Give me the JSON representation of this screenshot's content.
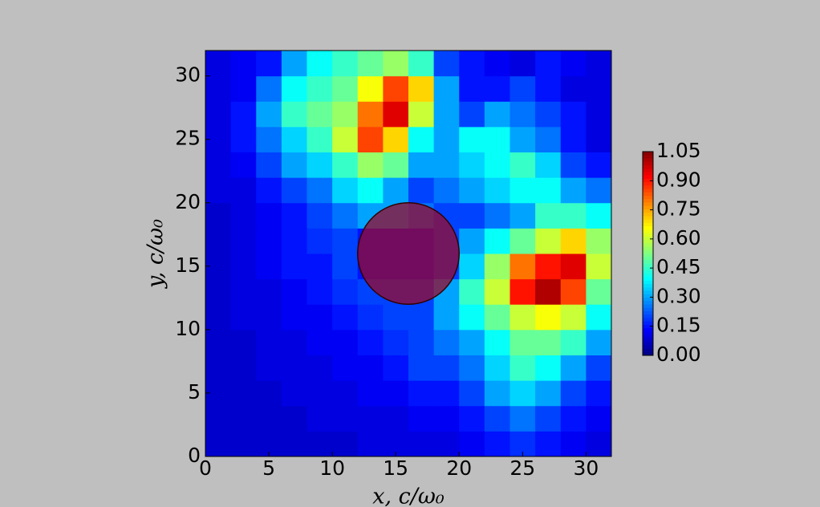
{
  "chart_data": {
    "type": "heatmap",
    "xlabel": "x,  c/ω₀",
    "ylabel": "y,  c/ω₀",
    "xbins": [
      0,
      2,
      4,
      6,
      8,
      10,
      12,
      14,
      16,
      18,
      20,
      22,
      24,
      26,
      28,
      30,
      32
    ],
    "ybins": [
      0,
      2,
      4,
      6,
      8,
      10,
      12,
      14,
      16,
      18,
      20,
      22,
      24,
      26,
      28,
      30,
      32
    ],
    "z": [
      [
        0.08,
        0.08,
        0.08,
        0.08,
        0.08,
        0.08,
        0.1,
        0.1,
        0.1,
        0.1,
        0.12,
        0.15,
        0.18,
        0.15,
        0.12,
        0.1
      ],
      [
        0.08,
        0.08,
        0.08,
        0.08,
        0.1,
        0.1,
        0.1,
        0.1,
        0.12,
        0.12,
        0.15,
        0.2,
        0.25,
        0.2,
        0.15,
        0.12
      ],
      [
        0.08,
        0.08,
        0.08,
        0.1,
        0.1,
        0.1,
        0.12,
        0.12,
        0.15,
        0.15,
        0.2,
        0.3,
        0.35,
        0.3,
        0.2,
        0.15
      ],
      [
        0.08,
        0.08,
        0.1,
        0.1,
        0.1,
        0.12,
        0.12,
        0.15,
        0.2,
        0.2,
        0.25,
        0.35,
        0.45,
        0.4,
        0.3,
        0.2
      ],
      [
        0.08,
        0.08,
        0.1,
        0.1,
        0.12,
        0.12,
        0.15,
        0.18,
        0.2,
        0.25,
        0.3,
        0.4,
        0.5,
        0.5,
        0.45,
        0.3
      ],
      [
        0.08,
        0.1,
        0.1,
        0.12,
        0.12,
        0.15,
        0.18,
        0.2,
        0.2,
        0.3,
        0.4,
        0.5,
        0.6,
        0.65,
        0.6,
        0.4
      ],
      [
        0.08,
        0.1,
        0.1,
        0.12,
        0.15,
        0.18,
        0.2,
        0.2,
        0.2,
        0.3,
        0.45,
        0.6,
        0.9,
        1.0,
        0.85,
        0.5
      ],
      [
        0.08,
        0.1,
        0.12,
        0.15,
        0.15,
        0.2,
        0.15,
        0.15,
        0.15,
        0.2,
        0.35,
        0.55,
        0.8,
        0.9,
        0.95,
        0.6
      ],
      [
        0.08,
        0.1,
        0.12,
        0.15,
        0.18,
        0.2,
        0.15,
        0.15,
        0.15,
        0.2,
        0.3,
        0.4,
        0.5,
        0.6,
        0.7,
        0.55
      ],
      [
        0.08,
        0.1,
        0.12,
        0.15,
        0.2,
        0.25,
        0.3,
        0.3,
        0.25,
        0.2,
        0.2,
        0.25,
        0.3,
        0.45,
        0.45,
        0.4
      ],
      [
        0.1,
        0.1,
        0.15,
        0.2,
        0.25,
        0.35,
        0.4,
        0.3,
        0.2,
        0.25,
        0.3,
        0.35,
        0.4,
        0.4,
        0.3,
        0.25
      ],
      [
        0.1,
        0.12,
        0.2,
        0.3,
        0.35,
        0.45,
        0.55,
        0.5,
        0.3,
        0.3,
        0.35,
        0.4,
        0.45,
        0.35,
        0.2,
        0.15
      ],
      [
        0.1,
        0.15,
        0.25,
        0.35,
        0.45,
        0.6,
        0.85,
        0.7,
        0.4,
        0.3,
        0.4,
        0.4,
        0.3,
        0.25,
        0.15,
        0.1
      ],
      [
        0.1,
        0.15,
        0.3,
        0.45,
        0.5,
        0.55,
        0.8,
        0.95,
        0.6,
        0.3,
        0.2,
        0.3,
        0.25,
        0.2,
        0.15,
        0.1
      ],
      [
        0.1,
        0.12,
        0.25,
        0.4,
        0.45,
        0.5,
        0.65,
        0.85,
        0.7,
        0.3,
        0.15,
        0.15,
        0.2,
        0.15,
        0.1,
        0.1
      ],
      [
        0.1,
        0.12,
        0.15,
        0.3,
        0.4,
        0.45,
        0.5,
        0.55,
        0.45,
        0.2,
        0.15,
        0.12,
        0.1,
        0.15,
        0.12,
        0.1
      ]
    ],
    "xlim": [
      0,
      32
    ],
    "ylim": [
      0,
      32
    ],
    "xticks": [
      0,
      5,
      10,
      15,
      20,
      25,
      30
    ],
    "yticks": [
      0,
      5,
      10,
      15,
      20,
      25,
      30
    ],
    "colormap": "jet",
    "clim": [
      0,
      1.05
    ],
    "cticks": [
      {
        "value": 0,
        "label": "0.00"
      },
      {
        "value": 0.15,
        "label": "0.15"
      },
      {
        "value": 0.3,
        "label": "0.30"
      },
      {
        "value": 0.45,
        "label": "0.45"
      },
      {
        "value": 0.6,
        "label": "0.60"
      },
      {
        "value": 0.75,
        "label": "0.75"
      },
      {
        "value": 0.9,
        "label": "0.90"
      },
      {
        "value": 1.05,
        "label": "1.05"
      }
    ],
    "circle": {
      "x": 16,
      "y": 16,
      "r": 4,
      "color": "#9a0a2a"
    }
  }
}
